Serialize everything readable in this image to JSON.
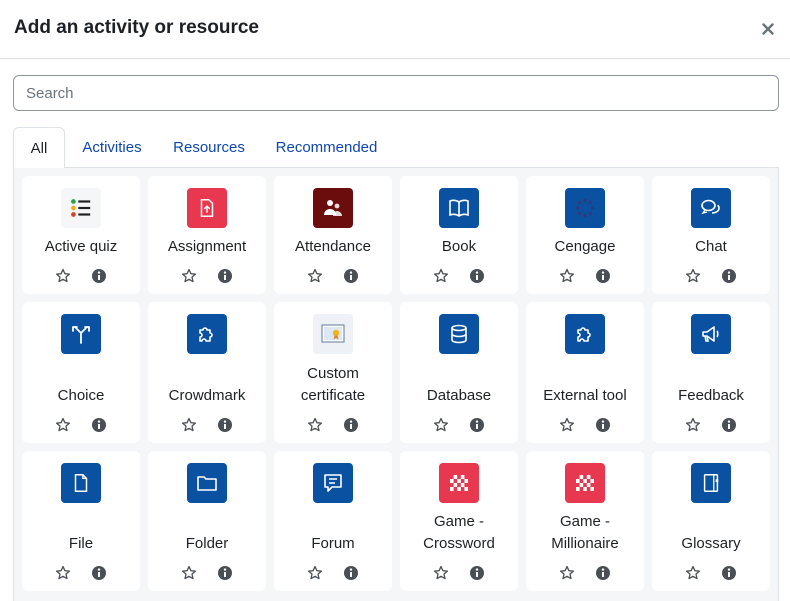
{
  "dialog": {
    "title": "Add an activity or resource",
    "search_placeholder": "Search"
  },
  "tabs": [
    {
      "label": "All",
      "active": true
    },
    {
      "label": "Activities",
      "active": false
    },
    {
      "label": "Resources",
      "active": false
    },
    {
      "label": "Recommended",
      "active": false
    }
  ],
  "modules": [
    {
      "label": "Active quiz",
      "icon": "list-icon",
      "bg": "#f5f6f8"
    },
    {
      "label": "Assignment",
      "icon": "file-upload-icon",
      "bg": "#e8384f"
    },
    {
      "label": "Attendance",
      "icon": "people-icon",
      "bg": "#6b0d0d"
    },
    {
      "label": "Book",
      "icon": "book-icon",
      "bg": "#0a52a1"
    },
    {
      "label": "Cengage",
      "icon": "dots-circle-icon",
      "bg": "#0a52a1"
    },
    {
      "label": "Chat",
      "icon": "chat-icon",
      "bg": "#0a52a1"
    },
    {
      "label": "Choice",
      "icon": "signpost-icon",
      "bg": "#0a52a1"
    },
    {
      "label": "Crowdmark",
      "icon": "puzzle-icon",
      "bg": "#0a52a1"
    },
    {
      "label": "Custom certificate",
      "label_lines": [
        "Custom",
        "certificate"
      ],
      "icon": "certificate-icon",
      "bg": "#eef2f7"
    },
    {
      "label": "Database",
      "icon": "database-icon",
      "bg": "#0a52a1"
    },
    {
      "label": "External tool",
      "icon": "puzzle-icon",
      "bg": "#0a52a1"
    },
    {
      "label": "Feedback",
      "icon": "megaphone-icon",
      "bg": "#0a52a1"
    },
    {
      "label": "File",
      "icon": "file-icon",
      "bg": "#0a52a1"
    },
    {
      "label": "Folder",
      "icon": "folder-icon",
      "bg": "#0a52a1"
    },
    {
      "label": "Forum",
      "icon": "forum-icon",
      "bg": "#0a52a1"
    },
    {
      "label": "Game - Crossword",
      "label_lines": [
        "Game -",
        "Crossword"
      ],
      "icon": "checkerboard-icon",
      "bg": "#e8384f"
    },
    {
      "label": "Game - Millionaire",
      "label_lines": [
        "Game -",
        "Millionaire"
      ],
      "icon": "checkerboard-icon",
      "bg": "#e8384f"
    },
    {
      "label": "Glossary",
      "icon": "glossary-icon",
      "bg": "#0a52a1"
    }
  ]
}
